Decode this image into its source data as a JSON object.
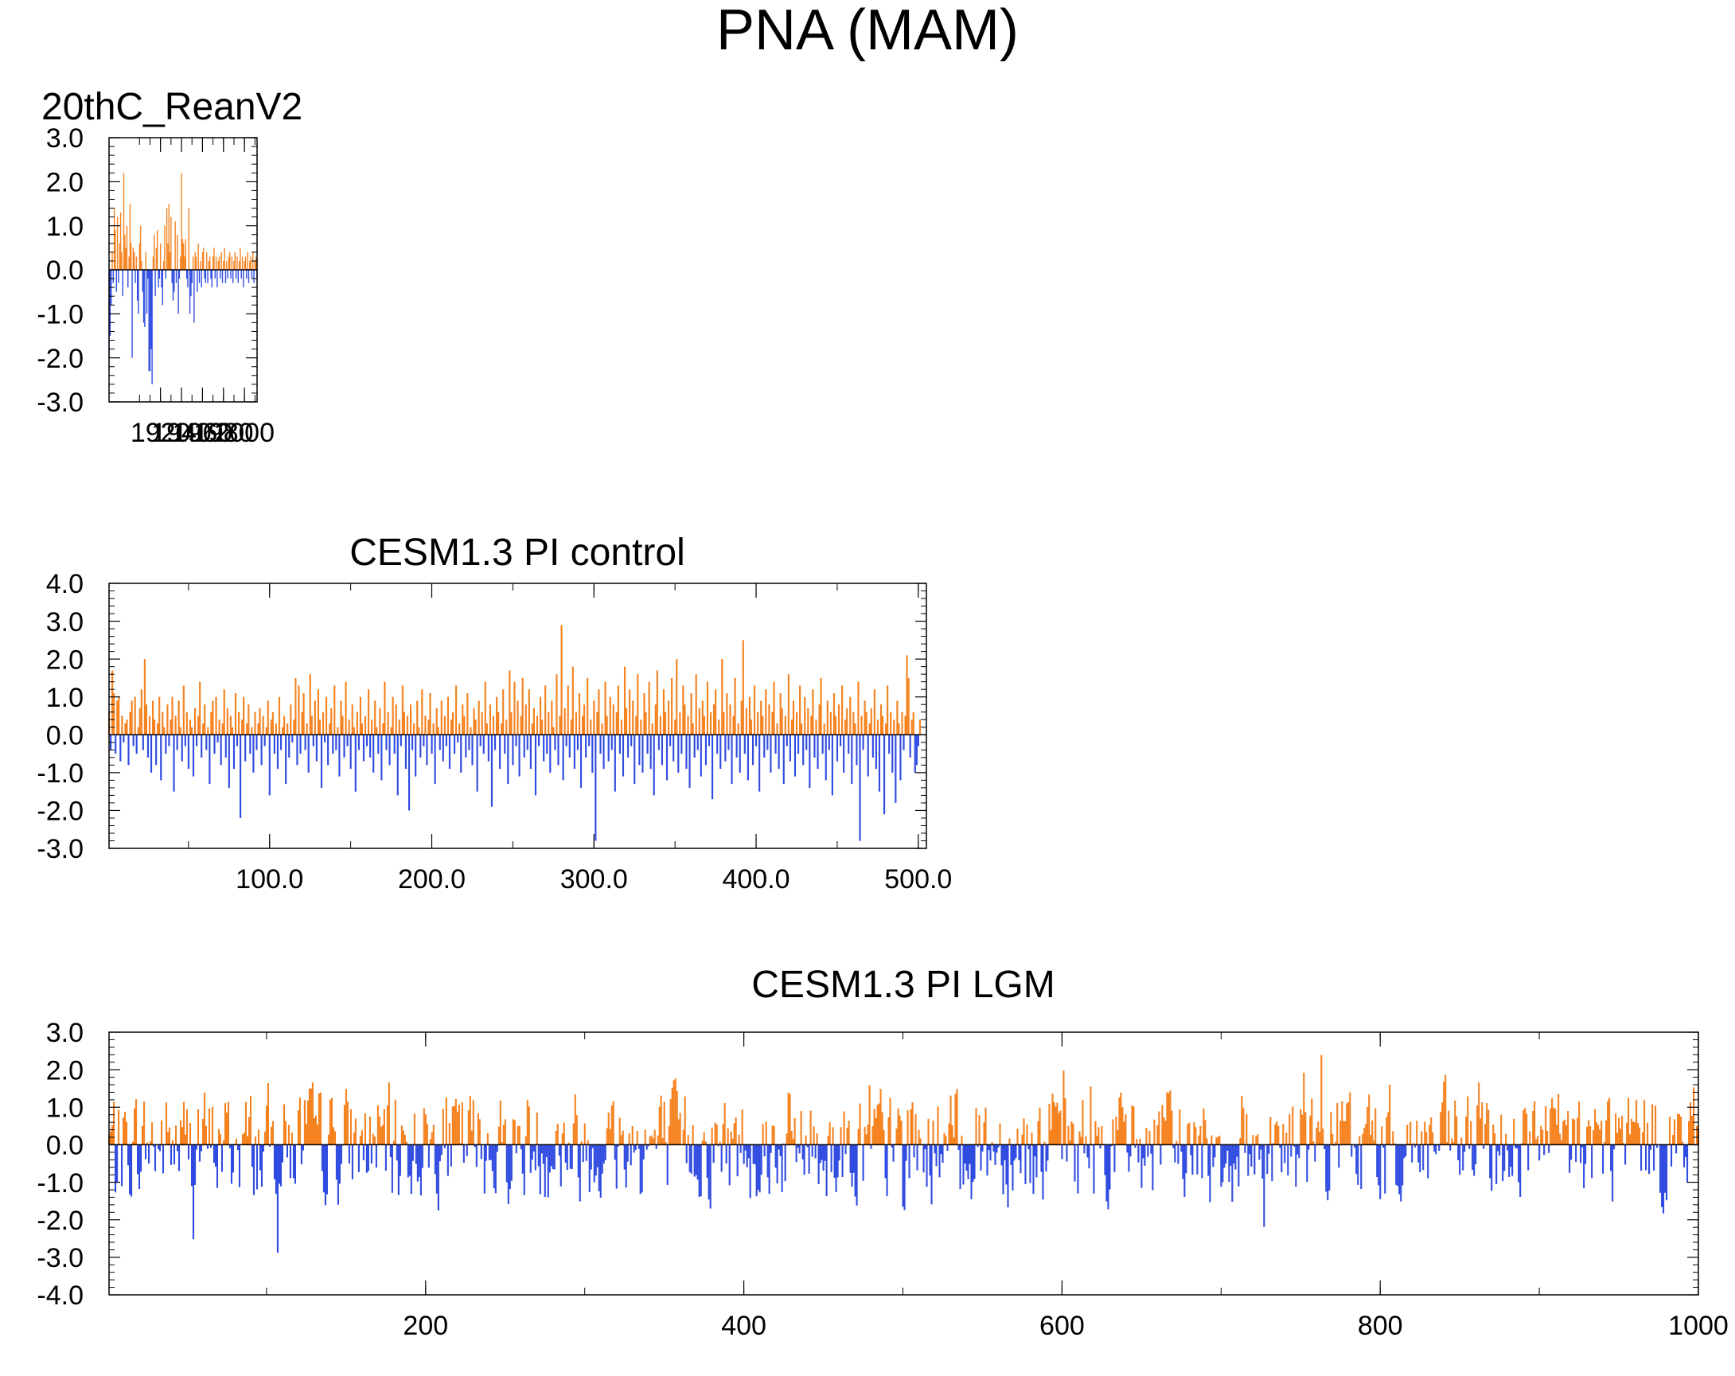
{
  "page": {
    "title": "PNA (MAM)"
  },
  "colors": {
    "positive": "#F5821F",
    "negative": "#2F4BE0",
    "axis": "#000000"
  },
  "chart_data": [
    {
      "type": "bar",
      "title": "20thC_ReanV2",
      "title_align": "left",
      "x_range": [
        1871,
        2012
      ],
      "ylim": [
        -3.0,
        3.0
      ],
      "y_ticks": [
        "3.0",
        "2.0",
        "1.0",
        "0.0",
        "-1.0",
        "-2.0",
        "-3.0"
      ],
      "x_ticks": [
        "1920",
        "1940",
        "1960",
        "1980",
        "2000"
      ],
      "x_tick_values": [
        1920,
        1940,
        1960,
        1980,
        2000
      ],
      "x": [
        1871,
        1872,
        1873,
        1874,
        1875,
        1876,
        1877,
        1878,
        1879,
        1880,
        1881,
        1882,
        1883,
        1884,
        1885,
        1886,
        1887,
        1888,
        1889,
        1890,
        1891,
        1892,
        1893,
        1894,
        1895,
        1896,
        1897,
        1898,
        1899,
        1900,
        1901,
        1902,
        1903,
        1904,
        1905,
        1906,
        1907,
        1908,
        1909,
        1910,
        1911,
        1912,
        1913,
        1914,
        1915,
        1916,
        1917,
        1918,
        1919,
        1920,
        1921,
        1922,
        1923,
        1924,
        1925,
        1926,
        1927,
        1928,
        1929,
        1930,
        1931,
        1932,
        1933,
        1934,
        1935,
        1936,
        1937,
        1938,
        1939,
        1940,
        1941,
        1942,
        1943,
        1944,
        1945,
        1946,
        1947,
        1948,
        1949,
        1950,
        1951,
        1952,
        1953,
        1954,
        1955,
        1956,
        1957,
        1958,
        1959,
        1960,
        1961,
        1962,
        1963,
        1964,
        1965,
        1966,
        1967,
        1968,
        1969,
        1970,
        1971,
        1972,
        1973,
        1974,
        1975,
        1976,
        1977,
        1978,
        1979,
        1980,
        1981,
        1982,
        1983,
        1984,
        1985,
        1986,
        1987,
        1988,
        1989,
        1990,
        1991,
        1992,
        1993,
        1994,
        1995,
        1996,
        1997,
        1998,
        1999,
        2000,
        2001,
        2002,
        2003,
        2004,
        2005,
        2006,
        2007,
        2008,
        2009,
        2010,
        2011,
        2012
      ],
      "values": [
        -2.0,
        -1.5,
        -0.8,
        0.4,
        -0.3,
        1.4,
        0.9,
        -0.5,
        1.2,
        -0.3,
        0.6,
        1.3,
        0.4,
        -0.6,
        2.2,
        0.8,
        0.5,
        1.0,
        -0.4,
        0.3,
        1.5,
        0.6,
        -2.0,
        0.5,
        0.4,
        -0.3,
        0.3,
        -0.7,
        -1.0,
        0.6,
        1.0,
        0.2,
        -0.5,
        -1.2,
        -1.3,
        0.4,
        -1.0,
        -0.2,
        -2.3,
        -2.3,
        -1.8,
        -2.6,
        0.3,
        0.8,
        -0.6,
        0.5,
        0.9,
        -0.4,
        -0.2,
        0.6,
        -0.4,
        -0.8,
        0.2,
        1.0,
        -0.2,
        1.4,
        0.6,
        1.5,
        0.4,
        1.2,
        -0.3,
        -0.7,
        -0.5,
        1.1,
        -0.3,
        0.8,
        -1.0,
        -0.2,
        0.3,
        2.2,
        0.7,
        0.6,
        0.3,
        0.7,
        -0.2,
        -0.4,
        1.4,
        -1.0,
        -0.6,
        -0.3,
        0.3,
        -1.2,
        0.4,
        0.3,
        -0.5,
        0.6,
        -0.3,
        0.2,
        -0.4,
        0.4,
        0.5,
        -0.2,
        -0.3,
        0.4,
        -0.3,
        0.2,
        0.3,
        -0.2,
        -0.4,
        0.3,
        0.5,
        -0.2,
        0.3,
        -0.4,
        0.2,
        0.3,
        -0.2,
        0.4,
        -0.3,
        0.2,
        0.5,
        -0.3,
        0.2,
        -0.2,
        0.3,
        0.4,
        -0.2,
        0.3,
        -0.3,
        0.2,
        0.4,
        -0.2,
        0.3,
        -0.3,
        0.2,
        0.5,
        -0.2,
        0.3,
        -0.4,
        0.2,
        0.3,
        -0.2,
        0.4,
        -0.3,
        0.2,
        0.3,
        -0.2,
        0.4,
        -0.3,
        0.2,
        0.3,
        -0.2
      ]
    },
    {
      "type": "bar",
      "title": "CESM1.3 PI control",
      "title_align": "center",
      "x_range": [
        1,
        505
      ],
      "ylim": [
        -3.0,
        4.0
      ],
      "y_ticks": [
        "4.0",
        "3.0",
        "2.0",
        "1.0",
        "0.0",
        "-1.0",
        "-2.0",
        "-3.0"
      ],
      "x_ticks": [
        "100.0",
        "200.0",
        "300.0",
        "400.0",
        "500.0"
      ],
      "x_tick_values": [
        100,
        200,
        300,
        400,
        500
      ],
      "x_start": 1,
      "values": [
        0.6,
        -0.4,
        1.7,
        1.1,
        -0.5,
        0.9,
        1.0,
        -0.7,
        0.5,
        -0.2,
        0.3,
        0.4,
        -0.8,
        0.6,
        0.9,
        -0.3,
        1.0,
        -0.5,
        0.2,
        0.7,
        1.2,
        -0.4,
        2.0,
        0.8,
        -0.6,
        0.5,
        -1.0,
        0.9,
        0.4,
        -0.8,
        0.3,
        1.0,
        -1.2,
        0.6,
        0.2,
        -0.5,
        0.8,
        -0.3,
        0.4,
        1.0,
        -1.5,
        0.5,
        -0.4,
        0.9,
        0.2,
        -0.7,
        1.3,
        -0.3,
        0.6,
        -0.9,
        0.4,
        0.2,
        -1.1,
        0.7,
        -0.3,
        0.5,
        1.4,
        -0.6,
        0.3,
        0.8,
        -0.4,
        0.2,
        -1.3,
        0.6,
        0.9,
        -0.5,
        1.0,
        -0.2,
        0.4,
        -0.8,
        0.3,
        1.2,
        -0.6,
        0.7,
        -1.4,
        0.5,
        0.2,
        -0.9,
        1.1,
        -0.3,
        0.6,
        -2.2,
        0.4,
        1.0,
        -0.7,
        0.3,
        0.8,
        -0.5,
        0.2,
        -1.0,
        0.6,
        -0.4,
        0.3,
        0.7,
        -0.8,
        0.5,
        -0.3,
        0.2,
        0.9,
        -1.6,
        0.4,
        0.6,
        -0.5,
        0.3,
        -0.9,
        1.0,
        -0.4,
        0.2,
        0.5,
        -1.3,
        0.3,
        -0.6,
        0.8,
        -0.2,
        0.4,
        1.5,
        -0.8,
        1.3,
        -0.5,
        0.6,
        1.1,
        -0.4,
        0.3,
        -1.0,
        1.6,
        0.5,
        -0.3,
        0.9,
        -0.7,
        1.2,
        0.4,
        -1.4,
        0.6,
        -0.2,
        1.0,
        -0.8,
        0.3,
        0.7,
        -0.5,
        1.3,
        -0.4,
        0.2,
        -1.1,
        0.9,
        0.5,
        -0.6,
        1.4,
        -0.3,
        0.4,
        -0.9,
        0.8,
        0.2,
        -1.5,
        0.6,
        -0.4,
        1.0,
        0.3,
        -0.7,
        0.5,
        -0.3,
        1.2,
        -0.6,
        0.4,
        -1.0,
        0.9,
        0.2,
        -0.5,
        0.7,
        -1.2,
        0.3,
        1.4,
        -0.4,
        0.6,
        -0.8,
        0.2,
        1.0,
        -0.5,
        0.8,
        -1.6,
        0.4,
        -0.3,
        1.3,
        0.6,
        -0.9,
        0.5,
        -2.0,
        0.8,
        -0.4,
        0.3,
        -1.1,
        0.9,
        0.2,
        -0.6,
        1.2,
        -0.3,
        0.5,
        -0.8,
        0.4,
        1.1,
        -0.5,
        0.3,
        -1.3,
        0.7,
        0.2,
        -0.4,
        0.9,
        -0.7,
        0.5,
        -0.3,
        1.0,
        -0.9,
        0.4,
        0.6,
        -0.5,
        1.3,
        -0.2,
        0.3,
        -1.0,
        0.8,
        0.5,
        -0.6,
        1.1,
        -0.4,
        0.2,
        -0.8,
        0.7,
        0.4,
        -1.5,
        0.9,
        -0.3,
        0.6,
        -0.5,
        1.4,
        0.3,
        -0.7,
        0.8,
        -1.9,
        0.5,
        -0.4,
        1.0,
        0.6,
        -0.9,
        0.3,
        1.2,
        -0.5,
        0.4,
        -1.3,
        1.7,
        0.6,
        -0.8,
        1.4,
        -0.3,
        0.9,
        -1.1,
        0.5,
        1.5,
        -0.6,
        0.8,
        -0.4,
        1.2,
        -0.9,
        0.3,
        0.7,
        -1.6,
        0.5,
        -0.3,
        1.0,
        0.4,
        -0.7,
        1.3,
        -0.5,
        0.6,
        -1.0,
        0.9,
        0.2,
        -0.4,
        1.6,
        -0.8,
        0.5,
        2.9,
        -1.2,
        0.7,
        -0.3,
        1.3,
        -0.6,
        0.4,
        1.8,
        -0.9,
        0.6,
        -0.4,
        1.1,
        -1.4,
        0.5,
        0.8,
        -0.6,
        1.5,
        -0.3,
        0.4,
        -1.0,
        0.9,
        -2.8,
        0.6,
        1.2,
        -0.5,
        0.3,
        -0.9,
        1.4,
        0.5,
        -0.7,
        1.0,
        -0.4,
        0.8,
        -1.5,
        0.6,
        1.3,
        -0.5,
        0.4,
        -1.1,
        1.8,
        0.7,
        -0.6,
        1.2,
        -0.3,
        0.9,
        -1.3,
        0.5,
        1.6,
        -0.8,
        0.4,
        -1.0,
        1.1,
        0.6,
        -0.5,
        1.4,
        -0.9,
        0.3,
        -1.6,
        0.8,
        1.7,
        -0.4,
        0.5,
        -0.8,
        1.2,
        0.6,
        -1.2,
        0.9,
        -0.3,
        1.5,
        -0.7,
        0.4,
        2.0,
        -1.0,
        0.6,
        -0.5,
        1.3,
        0.8,
        -0.9,
        0.5,
        -1.4,
        1.1,
        0.3,
        -0.6,
        1.6,
        -0.4,
        0.7,
        -1.1,
        0.9,
        0.5,
        -0.8,
        1.4,
        -0.3,
        0.6,
        -1.7,
        0.8,
        1.2,
        -0.5,
        0.4,
        -0.9,
        2.0,
        0.6,
        -0.7,
        1.1,
        -0.4,
        0.8,
        -1.3,
        0.5,
        1.5,
        -0.6,
        0.3,
        -1.0,
        0.9,
        2.5,
        -0.5,
        0.7,
        -1.2,
        1.0,
        0.4,
        -0.8,
        1.3,
        -0.3,
        0.6,
        -1.5,
        0.9,
        0.5,
        -0.6,
        1.2,
        -0.4,
        0.8,
        -1.0,
        0.6,
        1.4,
        -0.5,
        0.3,
        -0.9,
        1.1,
        0.7,
        -1.3,
        0.5,
        -0.3,
        1.6,
        -0.7,
        0.4,
        0.9,
        -1.1,
        0.6,
        -0.5,
        1.3,
        0.3,
        -0.8,
        1.0,
        -0.4,
        0.7,
        -1.4,
        0.5,
        1.2,
        -0.6,
        0.4,
        -0.9,
        0.8,
        1.5,
        -0.5,
        0.3,
        -1.2,
        0.9,
        -0.4,
        0.6,
        -1.6,
        1.1,
        0.5,
        -0.7,
        0.8,
        -0.3,
        1.3,
        -1.0,
        0.4,
        0.7,
        -0.5,
        1.0,
        -1.3,
        0.6,
        0.3,
        -0.8,
        1.4,
        -2.8,
        0.5,
        -0.4,
        0.9,
        0.6,
        -1.1,
        0.3,
        0.7,
        -0.6,
        1.2,
        -0.9,
        0.4,
        -1.5,
        0.8,
        0.5,
        -2.1,
        0.3,
        1.3,
        -0.5,
        0.6,
        -1.0,
        0.4,
        -1.8,
        0.9,
        0.3,
        -1.2,
        0.6,
        -0.4,
        0.5,
        2.1,
        1.5,
        -0.6,
        0.4,
        0.6,
        -1.0,
        -0.8,
        -0.3,
        0.4
      ]
    },
    {
      "type": "bar",
      "title": "CESM1.3 PI LGM",
      "title_align": "center",
      "x_range": [
        1,
        1000
      ],
      "ylim": [
        -4.0,
        3.0
      ],
      "y_ticks": [
        "3.0",
        "2.0",
        "1.0",
        "0.0",
        "-1.0",
        "-2.0",
        "-3.0",
        "-4.0"
      ],
      "x_ticks": [
        "200",
        "400",
        "600",
        "800",
        "1000"
      ],
      "x_tick_values": [
        200,
        400,
        600,
        800,
        1000
      ],
      "x_start": 1,
      "values": "generated"
    }
  ]
}
